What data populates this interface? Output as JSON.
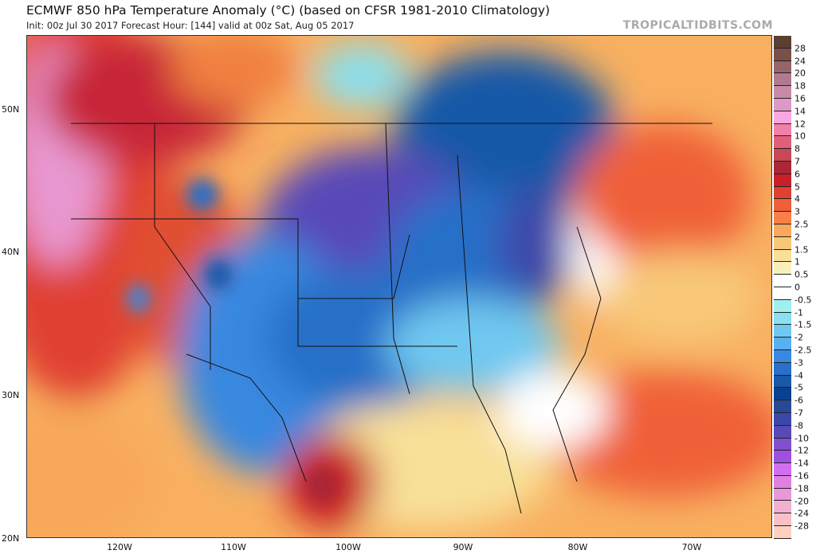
{
  "header": {
    "title": "ECMWF 850 hPa Temperature Anomaly (°C) (based on CFSR 1981-2010 Climatology)",
    "subtitle": "Init: 00z Jul 30 2017   Forecast Hour: [144]   valid at 00z Sat, Aug 05 2017",
    "brand": "TROPICALTIDBITS.COM"
  },
  "axes": {
    "lat_labels": [
      "50N",
      "40N",
      "30N",
      "20N"
    ],
    "lon_labels": [
      "120W",
      "110W",
      "100W",
      "90W",
      "80W",
      "70W"
    ]
  },
  "colorbar": {
    "labels": [
      "28",
      "24",
      "20",
      "18",
      "16",
      "14",
      "12",
      "10",
      "8",
      "7",
      "6",
      "5",
      "4",
      "3",
      "2.5",
      "2",
      "1.5",
      "1",
      "0.5",
      "0",
      "-0.5",
      "-1",
      "-1.5",
      "-2",
      "-2.5",
      "-3",
      "-4",
      "-5",
      "-6",
      "-7",
      "-8",
      "-10",
      "-12",
      "-14",
      "-16",
      "-18",
      "-20",
      "-24",
      "-28"
    ],
    "colors": [
      "#5a4030",
      "#7a5048",
      "#96646a",
      "#b07a90",
      "#c88aa8",
      "#de98c8",
      "#f8a8e0",
      "#f080a8",
      "#e06078",
      "#c84858",
      "#a82838",
      "#c82028",
      "#e04030",
      "#f06038",
      "#f88048",
      "#f8a858",
      "#f8c878",
      "#f8e098",
      "#f8f0b8",
      "#ffffff",
      "#ffffff",
      "#a0f0f0",
      "#88e0f0",
      "#70c8f0",
      "#58b0f0",
      "#3888e0",
      "#2870c8",
      "#1858a8",
      "#0a4090",
      "#284898",
      "#3c48a8",
      "#5848b8",
      "#8050d0",
      "#a050e0",
      "#d070f0",
      "#e080e0",
      "#e898d8",
      "#f0b0d0",
      "#f8c0c8",
      "#ffd0c0"
    ]
  }
}
